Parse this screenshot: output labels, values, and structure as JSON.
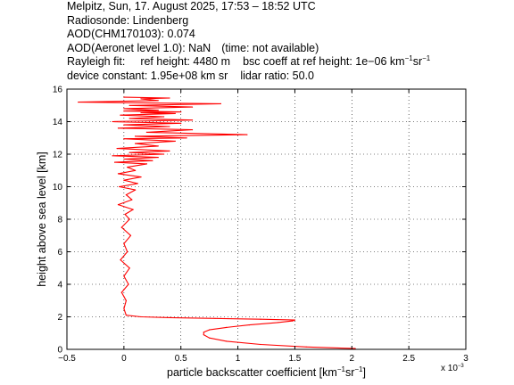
{
  "header": {
    "line1": "Melpitz, Sun, 17. August 2025, 17:53 – 18:52 UTC",
    "line2": "Radiosonde: Lindenberg",
    "line3": "AOD(CHM170103): 0.074",
    "line4_a": "AOD(Aeronet level 1.0): NaN",
    "line4_b": "(time: not available)",
    "rayleigh_label": "Rayleigh fit:",
    "ref_height": "ref height: 4480 m",
    "bsc_coeff": "bsc coeff at ref height: 1e−06 km",
    "bsc_unit_exp1": "−1",
    "bsc_unit_sr": "sr",
    "bsc_unit_exp2": "−1",
    "device_constant": "device constant: 1.95e+08 km sr",
    "lidar_ratio": "lidar ratio: 50.0"
  },
  "chart_data": {
    "type": "line",
    "xlabel": "particle backscatter coefficient [km⁻¹sr⁻¹]",
    "xlabel_parts": [
      "particle backscatter coefficient [km",
      "−1",
      "sr",
      "−1",
      "]"
    ],
    "ylabel": "height above sea level [km]",
    "x_multiplier": "x 10",
    "x_multiplier_exp": "−3",
    "xlim": [
      -0.5,
      3
    ],
    "ylim": [
      0,
      16
    ],
    "xticks": [
      -0.5,
      0,
      0.5,
      1,
      1.5,
      2,
      2.5,
      3
    ],
    "yticks": [
      0,
      2,
      4,
      6,
      8,
      10,
      12,
      14,
      16
    ],
    "xtick_labels": [
      "−0.5",
      "0",
      "0.5",
      "1",
      "1.5",
      "2",
      "2.5",
      "3"
    ],
    "ytick_labels": [
      "0",
      "2",
      "4",
      "6",
      "8",
      "10",
      "12",
      "14",
      "16"
    ],
    "grid": true,
    "line_color": "#ff0000",
    "series": [
      {
        "x": [
          2.03,
          1.6,
          1.2,
          0.9,
          0.75,
          0.7,
          0.7,
          0.75,
          0.9,
          1.1,
          1.35,
          1.48,
          1.5,
          1.2,
          0.8,
          0.4,
          0.15,
          0.02,
          0.0,
          0.02,
          -0.02,
          0.04,
          0.0,
          0.05,
          -0.03,
          0.03,
          0.0,
          0.06,
          -0.02,
          0.05,
          0.01,
          0.08,
          -0.05,
          0.07,
          0.02,
          0.1,
          -0.04,
          0.12,
          0.0,
          0.15,
          -0.05,
          0.1,
          0.03,
          0.2,
          -0.08,
          0.25,
          0.0,
          0.3,
          -0.1,
          0.35,
          0.05,
          0.4,
          -0.06,
          0.3,
          0.1,
          0.45,
          0.0,
          0.55,
          0.1,
          1.08,
          0.2,
          0.6,
          -0.05,
          0.4,
          0.0,
          0.5,
          -0.1,
          0.6,
          0.05,
          0.35,
          -0.03,
          0.45,
          0.15,
          0.5,
          0.0,
          0.3,
          0.0,
          0.6,
          0.05,
          0.85,
          -0.4,
          0.3,
          0.15,
          0.4,
          0.0
        ],
        "y": [
          0.05,
          0.15,
          0.3,
          0.5,
          0.7,
          0.9,
          1.05,
          1.2,
          1.35,
          1.5,
          1.65,
          1.75,
          1.8,
          1.85,
          1.9,
          1.95,
          2.0,
          2.1,
          2.5,
          3.0,
          3.5,
          4.0,
          4.5,
          5.0,
          5.5,
          6.0,
          6.5,
          7.0,
          7.5,
          8.0,
          8.3,
          8.6,
          8.9,
          9.2,
          9.5,
          9.8,
          10.0,
          10.2,
          10.4,
          10.6,
          10.8,
          11.0,
          11.2,
          11.4,
          11.5,
          11.6,
          11.7,
          11.8,
          11.9,
          12.0,
          12.1,
          12.2,
          12.35,
          12.5,
          12.65,
          12.8,
          12.95,
          13.0,
          13.1,
          13.2,
          13.35,
          13.5,
          13.6,
          13.7,
          13.8,
          13.9,
          14.0,
          14.1,
          14.2,
          14.3,
          14.4,
          14.5,
          14.55,
          14.6,
          14.65,
          14.7,
          14.8,
          14.9,
          15.0,
          15.1,
          15.2,
          15.3,
          15.4,
          15.45,
          15.5
        ]
      }
    ]
  }
}
